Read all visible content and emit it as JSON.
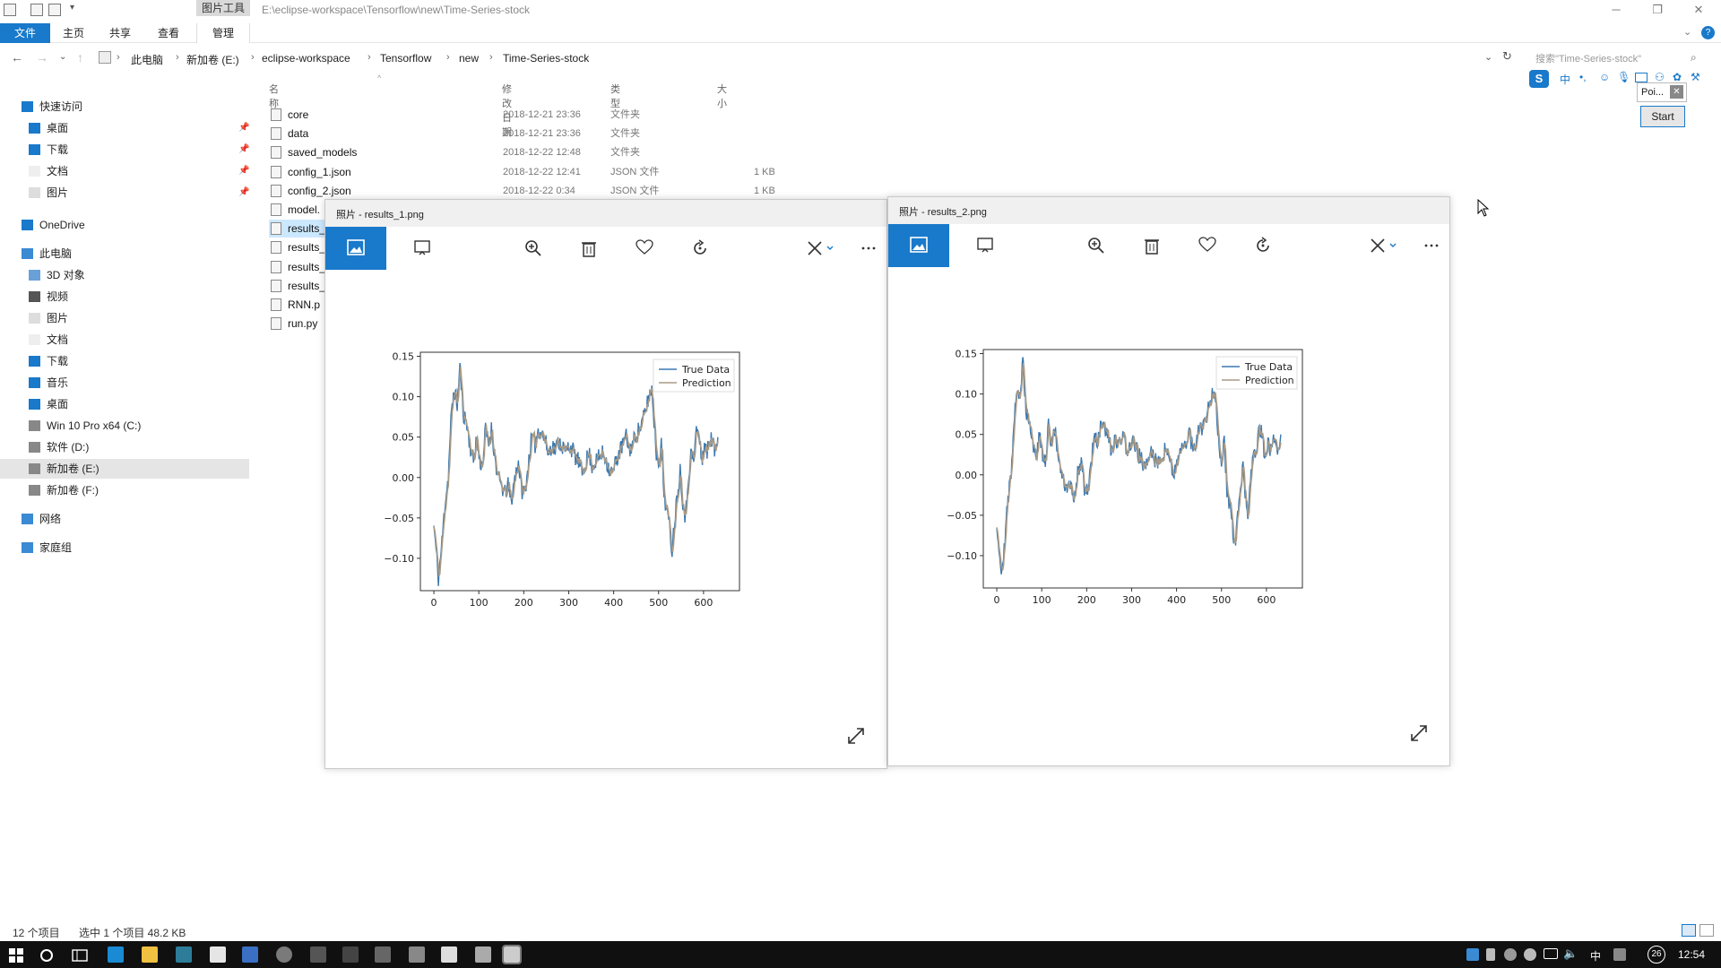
{
  "explorer": {
    "tools_tab": "图片工具",
    "window_title": "E:\\eclipse-workspace\\Tensorflow\\new\\Time-Series-stock",
    "ribbon_tabs": [
      "文件",
      "主页",
      "共享",
      "查看",
      "管理"
    ],
    "breadcrumbs": [
      "此电脑",
      "新加卷 (E:)",
      "eclipse-workspace",
      "Tensorflow",
      "new",
      "Time-Series-stock"
    ],
    "search_placeholder": "搜索\"Time-Series-stock\"",
    "columns": {
      "name": "名称",
      "date": "修改日期",
      "type": "类型",
      "size": "大小"
    },
    "nav": [
      {
        "label": "快速访问",
        "icon": "star-icon",
        "pinned": false
      },
      {
        "label": "桌面",
        "icon": "desktop-icon",
        "pinned": true
      },
      {
        "label": "下载",
        "icon": "download-icon",
        "pinned": true
      },
      {
        "label": "文档",
        "icon": "document-icon",
        "pinned": true
      },
      {
        "label": "图片",
        "icon": "pictures-icon",
        "pinned": true
      },
      {
        "label": "OneDrive",
        "icon": "cloud-icon",
        "pinned": false
      },
      {
        "label": "此电脑",
        "icon": "computer-icon",
        "pinned": false
      },
      {
        "label": "3D 对象",
        "icon": "cube-icon",
        "pinned": false
      },
      {
        "label": "视频",
        "icon": "video-icon",
        "pinned": false
      },
      {
        "label": "图片",
        "icon": "pictures-icon",
        "pinned": false
      },
      {
        "label": "文档",
        "icon": "document-icon",
        "pinned": false
      },
      {
        "label": "下载",
        "icon": "download-icon",
        "pinned": false
      },
      {
        "label": "音乐",
        "icon": "music-icon",
        "pinned": false
      },
      {
        "label": "桌面",
        "icon": "desktop-icon",
        "pinned": false
      },
      {
        "label": "Win 10 Pro x64 (C:)",
        "icon": "drive-icon",
        "pinned": false
      },
      {
        "label": "软件 (D:)",
        "icon": "drive-icon",
        "pinned": false
      },
      {
        "label": "新加卷 (E:)",
        "icon": "drive-icon",
        "pinned": false
      },
      {
        "label": "新加卷 (F:)",
        "icon": "drive-icon",
        "pinned": false
      },
      {
        "label": "网络",
        "icon": "network-icon",
        "pinned": false
      },
      {
        "label": "家庭组",
        "icon": "homegroup-icon",
        "pinned": false
      }
    ],
    "files": [
      {
        "name": "core",
        "date": "2018-12-21 23:36",
        "type": "文件夹",
        "size": ""
      },
      {
        "name": "data",
        "date": "2018-12-21 23:36",
        "type": "文件夹",
        "size": ""
      },
      {
        "name": "saved_models",
        "date": "2018-12-22 12:48",
        "type": "文件夹",
        "size": ""
      },
      {
        "name": "config_1.json",
        "date": "2018-12-22 12:41",
        "type": "JSON 文件",
        "size": "1 KB"
      },
      {
        "name": "config_2.json",
        "date": "2018-12-22 0:34",
        "type": "JSON 文件",
        "size": "1 KB"
      },
      {
        "name": "model.",
        "date": "",
        "type": "",
        "size": ""
      },
      {
        "name": "results_",
        "date": "",
        "type": "",
        "size": ""
      },
      {
        "name": "results_",
        "date": "",
        "type": "",
        "size": ""
      },
      {
        "name": "results_",
        "date": "",
        "type": "",
        "size": ""
      },
      {
        "name": "results_",
        "date": "",
        "type": "",
        "size": ""
      },
      {
        "name": "RNN.p",
        "date": "",
        "type": "",
        "size": ""
      },
      {
        "name": "run.py",
        "date": "",
        "type": "",
        "size": ""
      }
    ],
    "status": {
      "count": "12 个项目",
      "selected": "选中 1 个项目  48.2 KB"
    }
  },
  "photos": [
    {
      "title": "照片 - results_1.png"
    },
    {
      "title": "照片 - results_2.png"
    }
  ],
  "ime": {
    "poi": "Poi...",
    "start": "Start",
    "lang": "中"
  },
  "taskbar": {
    "time": "12:54",
    "badge": "26",
    "lang": "中"
  },
  "colors": {
    "accent": "#1979ca",
    "true_series": "#3a78b0",
    "pred_series": "#a89a86"
  },
  "chart_data": [
    {
      "type": "line",
      "title": "",
      "xlabel": "",
      "ylabel": "",
      "xlim": [
        -30,
        680
      ],
      "ylim": [
        -0.14,
        0.155
      ],
      "xticks": [
        "0",
        "100",
        "200",
        "300",
        "400",
        "500",
        "600"
      ],
      "yticks": [
        "−0.10",
        "−0.05",
        "0.00",
        "0.05",
        "0.10",
        "0.15"
      ],
      "legend": "top-right",
      "series": [
        {
          "name": "True Data",
          "color": "#3a78b0"
        },
        {
          "name": "Prediction",
          "color": "#a89a86"
        }
      ],
      "keypoints": [
        [
          0,
          -0.06
        ],
        [
          5,
          -0.09
        ],
        [
          10,
          -0.125
        ],
        [
          18,
          -0.08
        ],
        [
          25,
          -0.03
        ],
        [
          32,
          0.0
        ],
        [
          38,
          0.07
        ],
        [
          45,
          0.11
        ],
        [
          52,
          0.09
        ],
        [
          58,
          0.14
        ],
        [
          65,
          0.08
        ],
        [
          72,
          0.07
        ],
        [
          80,
          0.04
        ],
        [
          88,
          0.02
        ],
        [
          95,
          0.05
        ],
        [
          102,
          0.02
        ],
        [
          108,
          0.015
        ],
        [
          115,
          0.06
        ],
        [
          122,
          0.04
        ],
        [
          128,
          0.06
        ],
        [
          135,
          0.03
        ],
        [
          142,
          0.0
        ],
        [
          150,
          -0.01
        ],
        [
          158,
          -0.02
        ],
        [
          165,
          -0.01
        ],
        [
          172,
          -0.03
        ],
        [
          180,
          0.0
        ],
        [
          188,
          0.02
        ],
        [
          195,
          -0.015
        ],
        [
          202,
          -0.02
        ],
        [
          210,
          0.015
        ],
        [
          218,
          0.05
        ],
        [
          225,
          0.04
        ],
        [
          232,
          0.06
        ],
        [
          240,
          0.055
        ],
        [
          248,
          0.045
        ],
        [
          255,
          0.03
        ],
        [
          262,
          0.04
        ],
        [
          270,
          0.035
        ],
        [
          278,
          0.045
        ],
        [
          285,
          0.04
        ],
        [
          292,
          0.03
        ],
        [
          300,
          0.04
        ],
        [
          308,
          0.035
        ],
        [
          315,
          0.025
        ],
        [
          322,
          0.02
        ],
        [
          330,
          0.005
        ],
        [
          338,
          0.02
        ],
        [
          345,
          0.03
        ],
        [
          352,
          0.015
        ],
        [
          360,
          0.02
        ],
        [
          368,
          0.025
        ],
        [
          375,
          0.03
        ],
        [
          382,
          0.025
        ],
        [
          390,
          0.01
        ],
        [
          398,
          0.005
        ],
        [
          405,
          0.02
        ],
        [
          412,
          0.03
        ],
        [
          420,
          0.04
        ],
        [
          428,
          0.05
        ],
        [
          435,
          0.035
        ],
        [
          442,
          0.04
        ],
        [
          450,
          0.055
        ],
        [
          458,
          0.06
        ],
        [
          465,
          0.07
        ],
        [
          472,
          0.085
        ],
        [
          478,
          0.1
        ],
        [
          485,
          0.11
        ],
        [
          490,
          0.07
        ],
        [
          495,
          0.03
        ],
        [
          500,
          0.02
        ],
        [
          506,
          0.04
        ],
        [
          512,
          -0.02
        ],
        [
          518,
          -0.04
        ],
        [
          524,
          -0.06
        ],
        [
          530,
          -0.09
        ],
        [
          536,
          -0.05
        ],
        [
          542,
          -0.02
        ],
        [
          548,
          0.01
        ],
        [
          554,
          -0.03
        ],
        [
          560,
          -0.05
        ],
        [
          566,
          0.0
        ],
        [
          572,
          0.03
        ],
        [
          578,
          0.02
        ],
        [
          584,
          0.06
        ],
        [
          590,
          0.05
        ],
        [
          596,
          0.02
        ],
        [
          602,
          0.04
        ],
        [
          608,
          0.03
        ],
        [
          614,
          0.05
        ],
        [
          620,
          0.045
        ],
        [
          626,
          0.03
        ],
        [
          632,
          0.05
        ]
      ]
    },
    {
      "type": "line",
      "title": "",
      "xlabel": "",
      "ylabel": "",
      "xlim": [
        -30,
        680
      ],
      "ylim": [
        -0.14,
        0.155
      ],
      "xticks": [
        "0",
        "100",
        "200",
        "300",
        "400",
        "500",
        "600"
      ],
      "yticks": [
        "−0.10",
        "−0.05",
        "0.00",
        "0.05",
        "0.10",
        "0.15"
      ],
      "legend": "top-right",
      "series": [
        {
          "name": "True Data",
          "color": "#3a78b0"
        },
        {
          "name": "Prediction",
          "color": "#a89a86"
        }
      ],
      "keypoints": [
        [
          0,
          -0.06
        ],
        [
          5,
          -0.09
        ],
        [
          10,
          -0.12
        ],
        [
          18,
          -0.08
        ],
        [
          25,
          -0.03
        ],
        [
          32,
          0.0
        ],
        [
          38,
          0.07
        ],
        [
          45,
          0.11
        ],
        [
          52,
          0.09
        ],
        [
          58,
          0.145
        ],
        [
          65,
          0.08
        ],
        [
          72,
          0.07
        ],
        [
          80,
          0.04
        ],
        [
          88,
          0.02
        ],
        [
          95,
          0.05
        ],
        [
          102,
          0.02
        ],
        [
          108,
          0.015
        ],
        [
          115,
          0.06
        ],
        [
          122,
          0.04
        ],
        [
          128,
          0.06
        ],
        [
          135,
          0.03
        ],
        [
          142,
          0.0
        ],
        [
          150,
          -0.01
        ],
        [
          158,
          -0.02
        ],
        [
          165,
          -0.01
        ],
        [
          172,
          -0.03
        ],
        [
          180,
          0.0
        ],
        [
          188,
          0.02
        ],
        [
          195,
          -0.015
        ],
        [
          202,
          -0.02
        ],
        [
          210,
          0.015
        ],
        [
          218,
          0.05
        ],
        [
          225,
          0.04
        ],
        [
          232,
          0.06
        ],
        [
          240,
          0.055
        ],
        [
          248,
          0.045
        ],
        [
          255,
          0.03
        ],
        [
          262,
          0.04
        ],
        [
          270,
          0.035
        ],
        [
          278,
          0.045
        ],
        [
          285,
          0.04
        ],
        [
          292,
          0.03
        ],
        [
          300,
          0.04
        ],
        [
          308,
          0.035
        ],
        [
          315,
          0.025
        ],
        [
          322,
          0.02
        ],
        [
          330,
          0.005
        ],
        [
          338,
          0.02
        ],
        [
          345,
          0.03
        ],
        [
          352,
          0.015
        ],
        [
          360,
          0.02
        ],
        [
          368,
          0.025
        ],
        [
          375,
          0.03
        ],
        [
          382,
          0.025
        ],
        [
          390,
          0.01
        ],
        [
          398,
          0.005
        ],
        [
          405,
          0.02
        ],
        [
          412,
          0.03
        ],
        [
          420,
          0.04
        ],
        [
          428,
          0.05
        ],
        [
          435,
          0.035
        ],
        [
          442,
          0.04
        ],
        [
          450,
          0.055
        ],
        [
          458,
          0.06
        ],
        [
          465,
          0.07
        ],
        [
          472,
          0.085
        ],
        [
          478,
          0.1
        ],
        [
          485,
          0.11
        ],
        [
          490,
          0.07
        ],
        [
          495,
          0.03
        ],
        [
          500,
          0.02
        ],
        [
          506,
          0.04
        ],
        [
          512,
          -0.02
        ],
        [
          518,
          -0.04
        ],
        [
          524,
          -0.06
        ],
        [
          530,
          -0.09
        ],
        [
          536,
          -0.05
        ],
        [
          542,
          -0.02
        ],
        [
          548,
          0.01
        ],
        [
          554,
          -0.03
        ],
        [
          560,
          -0.05
        ],
        [
          566,
          0.0
        ],
        [
          572,
          0.03
        ],
        [
          578,
          0.02
        ],
        [
          584,
          0.06
        ],
        [
          590,
          0.05
        ],
        [
          596,
          0.02
        ],
        [
          602,
          0.04
        ],
        [
          608,
          0.03
        ],
        [
          614,
          0.05
        ],
        [
          620,
          0.045
        ],
        [
          626,
          0.03
        ],
        [
          632,
          0.05
        ]
      ]
    }
  ]
}
